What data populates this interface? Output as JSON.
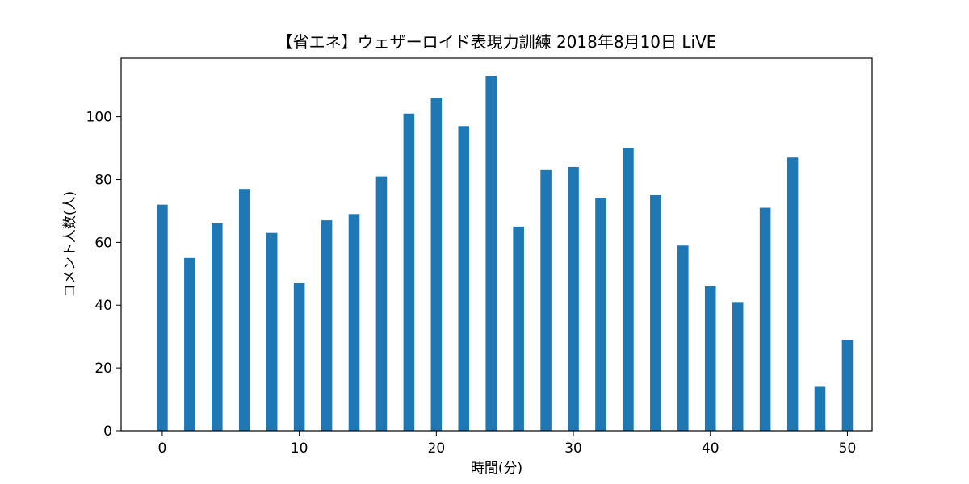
{
  "chart_data": {
    "type": "bar",
    "title": "【省エネ】ウェザーロイド表現力訓練  2018年8月10日 LiVE",
    "xlabel": "時間(分)",
    "ylabel": "コメント人数(人)",
    "x": [
      0,
      2,
      4,
      6,
      8,
      10,
      12,
      14,
      16,
      18,
      20,
      22,
      24,
      26,
      28,
      30,
      32,
      34,
      36,
      38,
      40,
      42,
      44,
      46,
      48,
      50
    ],
    "values": [
      72,
      55,
      66,
      77,
      63,
      47,
      67,
      69,
      81,
      101,
      106,
      97,
      113,
      65,
      83,
      84,
      74,
      90,
      75,
      59,
      46,
      41,
      71,
      87,
      14,
      29
    ],
    "bar_width": 0.8,
    "xlim": [
      -3,
      51.8
    ],
    "ylim": [
      0,
      118.65
    ],
    "xticks": [
      0,
      10,
      20,
      30,
      40,
      50
    ],
    "yticks": [
      0,
      20,
      40,
      60,
      80,
      100
    ],
    "bar_color": "#1f77b4",
    "grid": false,
    "legend": "none"
  }
}
